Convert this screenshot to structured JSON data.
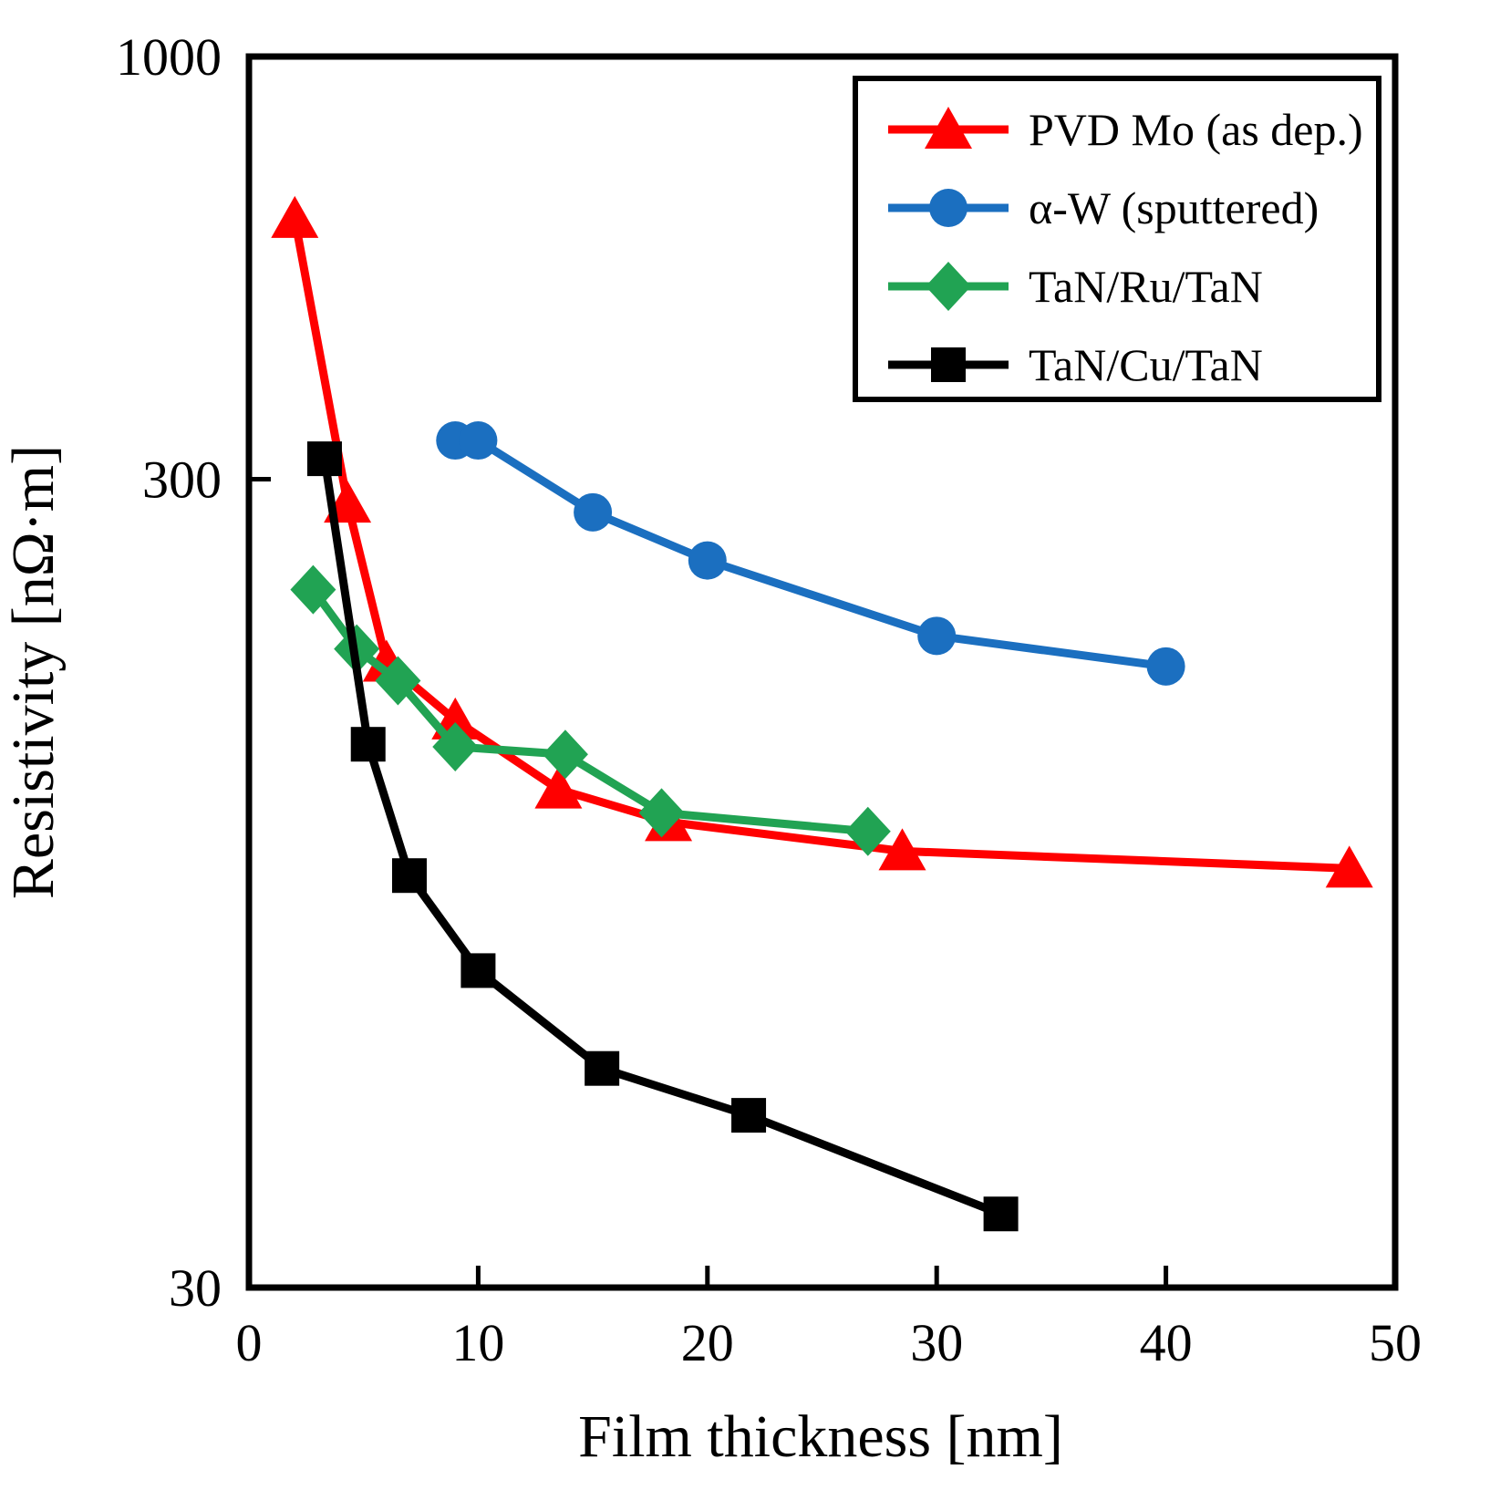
{
  "chart_data": {
    "type": "line",
    "title": "",
    "xlabel": "Film thickness [nm]",
    "ylabel": "Resistivity [nΩ·m]",
    "x_axis": {
      "scale": "linear",
      "min": 0,
      "max": 50,
      "ticks": [
        0,
        10,
        20,
        30,
        40,
        50
      ]
    },
    "y_axis": {
      "scale": "log",
      "min": 30,
      "max": 1000,
      "ticks": [
        30,
        300,
        1000
      ]
    },
    "grid": false,
    "legend_position": "top-right",
    "frame_color": "#000000",
    "series": [
      {
        "name": "PVD Mo (as dep.)",
        "color": "#FF0000",
        "marker": "triangle",
        "x": [
          2,
          4.3,
          6,
          9,
          13.5,
          18.3,
          28.5,
          48
        ],
        "y": [
          630,
          280,
          178,
          151,
          124,
          113,
          104,
          99
        ]
      },
      {
        "name": "α-W (sputtered)",
        "color": "#1B6FC0",
        "marker": "circle",
        "x": [
          9,
          10,
          15,
          20,
          30,
          40
        ],
        "y": [
          335,
          335,
          273,
          238,
          192,
          176
        ]
      },
      {
        "name": "TaN/Ru/TaN",
        "color": "#21A353",
        "marker": "diamond",
        "x": [
          2.8,
          4.7,
          6.5,
          9,
          13.8,
          18,
          27
        ],
        "y": [
          219,
          185,
          169,
          140,
          137,
          116,
          110
        ]
      },
      {
        "name": "TaN/Cu/TaN",
        "color": "#000000",
        "marker": "square",
        "x": [
          3.3,
          5.2,
          7,
          10,
          15.4,
          21.8,
          32.8
        ],
        "y": [
          318,
          141,
          97,
          74,
          56,
          49,
          37
        ]
      }
    ]
  }
}
